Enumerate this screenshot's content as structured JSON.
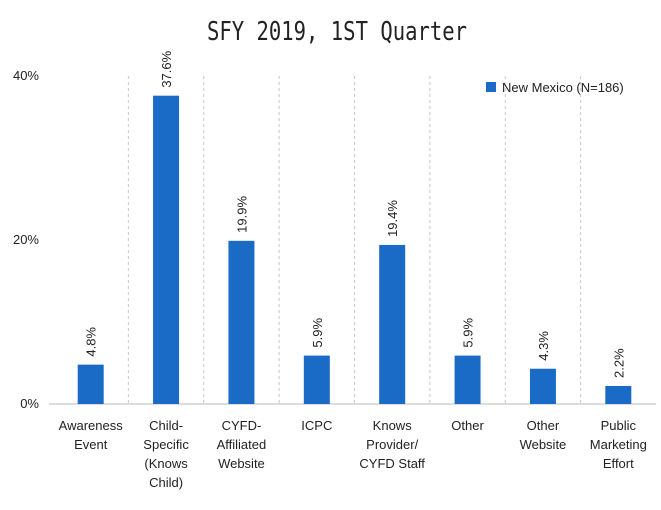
{
  "chart_data": {
    "type": "bar",
    "title": "SFY 2019, 1ST Quarter",
    "categories": [
      "Awareness\nEvent",
      "Child-\nSpecific\n(Knows\nChild)",
      "CYFD-\nAffiliated\nWebsite",
      "ICPC",
      "Knows\nProvider/\nCYFD Staff",
      "Other",
      "Other\nWebsite",
      "Public\nMarketing\nEffort"
    ],
    "series": [
      {
        "name": "New Mexico (N=186)",
        "color": "#1a6bc6",
        "values": [
          4.8,
          37.6,
          19.9,
          5.9,
          19.4,
          5.9,
          4.3,
          2.2
        ],
        "value_labels": [
          "4.8%",
          "37.6%",
          "19.9%",
          "5.9%",
          "19.4%",
          "5.9%",
          "4.3%",
          "2.2%"
        ]
      }
    ],
    "ylim": [
      0,
      40
    ],
    "yticks": [
      {
        "value": 0,
        "label": "0%"
      },
      {
        "value": 20,
        "label": "20%"
      },
      {
        "value": 40,
        "label": "40%"
      }
    ],
    "legend": "upper right"
  }
}
